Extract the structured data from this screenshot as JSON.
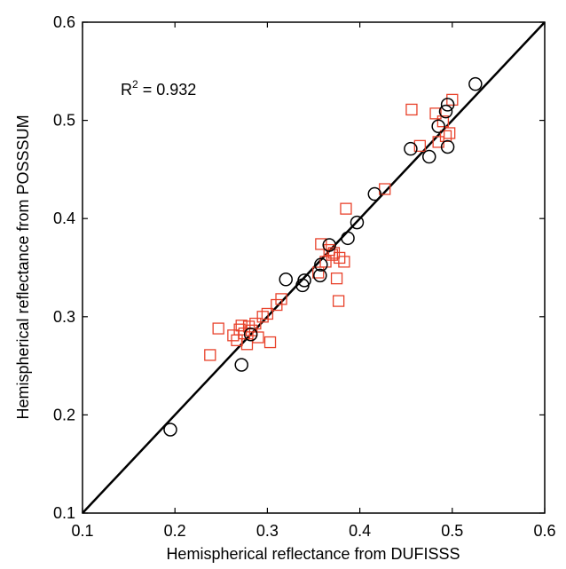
{
  "chart_data": {
    "type": "scatter",
    "title": "",
    "xlabel": "Hemispherical reflectance from DUFISSS",
    "ylabel": "Hemispherical reflectance from POSSSUM",
    "xlim": [
      0.1,
      0.6
    ],
    "ylim": [
      0.1,
      0.6
    ],
    "xticks": [
      "0.1",
      "0.2",
      "0.3",
      "0.4",
      "0.5",
      "0.6"
    ],
    "yticks": [
      "0.1",
      "0.2",
      "0.3",
      "0.4",
      "0.5",
      "0.6"
    ],
    "grid": false,
    "annotation": {
      "base": "R",
      "sup": "2",
      "rest": " = 0.932"
    },
    "reference_line": {
      "from": [
        0.1,
        0.1
      ],
      "to": [
        0.6,
        0.6
      ],
      "color": "#000000"
    },
    "series": [
      {
        "marker": "square",
        "color": "#e8412a",
        "points": [
          [
            0.238,
            0.261
          ],
          [
            0.247,
            0.288
          ],
          [
            0.263,
            0.281
          ],
          [
            0.267,
            0.276
          ],
          [
            0.27,
            0.287
          ],
          [
            0.272,
            0.291
          ],
          [
            0.275,
            0.283
          ],
          [
            0.278,
            0.272
          ],
          [
            0.28,
            0.29
          ],
          [
            0.283,
            0.286
          ],
          [
            0.287,
            0.293
          ],
          [
            0.29,
            0.279
          ],
          [
            0.295,
            0.3
          ],
          [
            0.3,
            0.303
          ],
          [
            0.303,
            0.274
          ],
          [
            0.31,
            0.312
          ],
          [
            0.315,
            0.318
          ],
          [
            0.355,
            0.345
          ],
          [
            0.358,
            0.374
          ],
          [
            0.363,
            0.356
          ],
          [
            0.367,
            0.368
          ],
          [
            0.37,
            0.363
          ],
          [
            0.372,
            0.365
          ],
          [
            0.375,
            0.339
          ],
          [
            0.377,
            0.316
          ],
          [
            0.378,
            0.36
          ],
          [
            0.383,
            0.356
          ],
          [
            0.385,
            0.41
          ],
          [
            0.427,
            0.43
          ],
          [
            0.456,
            0.511
          ],
          [
            0.465,
            0.474
          ],
          [
            0.482,
            0.507
          ],
          [
            0.485,
            0.478
          ],
          [
            0.49,
            0.499
          ],
          [
            0.493,
            0.484
          ],
          [
            0.497,
            0.487
          ],
          [
            0.5,
            0.521
          ]
        ]
      },
      {
        "marker": "circle",
        "color": "#000000",
        "points": [
          [
            0.195,
            0.185
          ],
          [
            0.272,
            0.251
          ],
          [
            0.282,
            0.282
          ],
          [
            0.32,
            0.338
          ],
          [
            0.338,
            0.332
          ],
          [
            0.34,
            0.337
          ],
          [
            0.357,
            0.342
          ],
          [
            0.358,
            0.353
          ],
          [
            0.367,
            0.373
          ],
          [
            0.387,
            0.38
          ],
          [
            0.397,
            0.396
          ],
          [
            0.416,
            0.425
          ],
          [
            0.455,
            0.471
          ],
          [
            0.475,
            0.463
          ],
          [
            0.485,
            0.494
          ],
          [
            0.493,
            0.509
          ],
          [
            0.495,
            0.516
          ],
          [
            0.495,
            0.473
          ],
          [
            0.525,
            0.537
          ]
        ]
      }
    ]
  }
}
